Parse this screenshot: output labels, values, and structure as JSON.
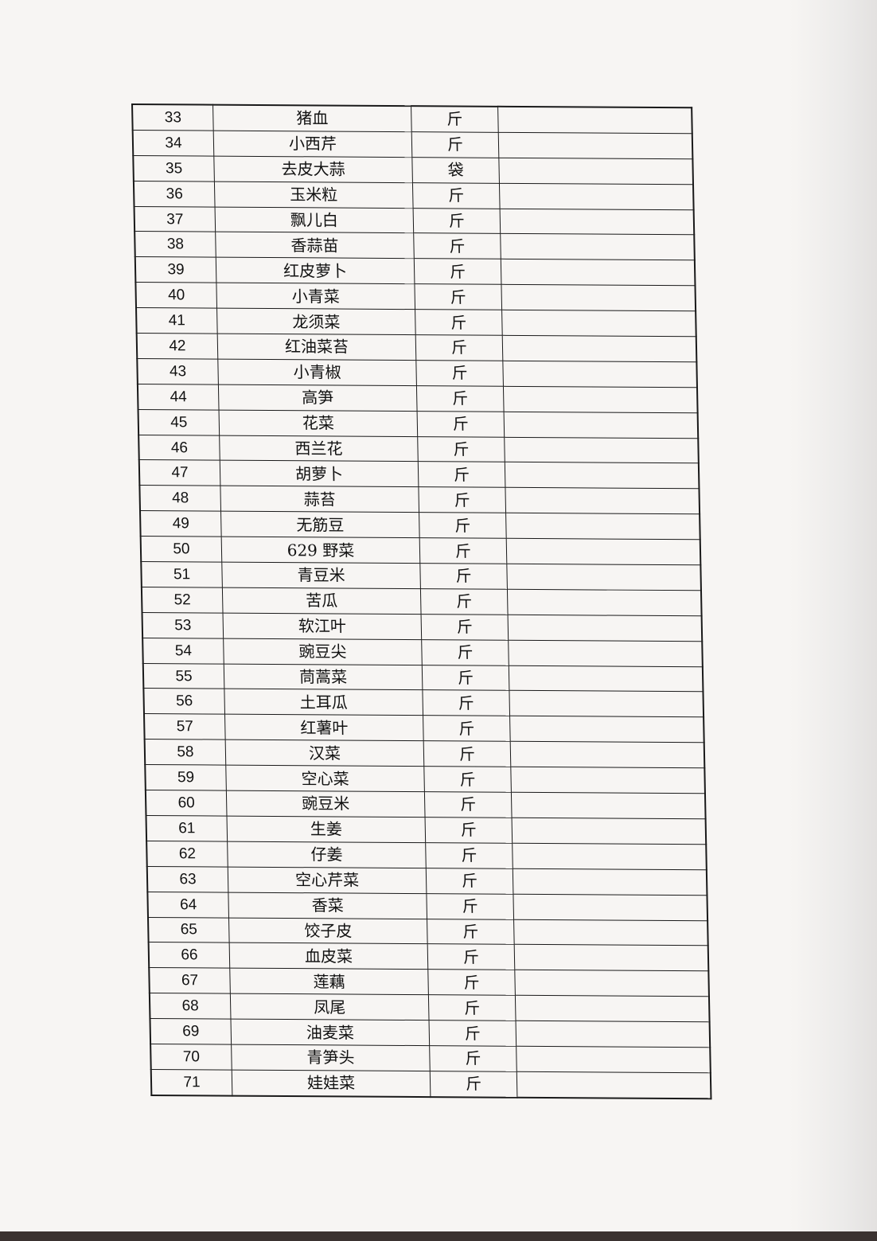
{
  "table": {
    "rows": [
      {
        "no": "33",
        "name": "猪血",
        "unit": "斤",
        "note": ""
      },
      {
        "no": "34",
        "name": "小西芹",
        "unit": "斤",
        "note": ""
      },
      {
        "no": "35",
        "name": "去皮大蒜",
        "unit": "袋",
        "note": ""
      },
      {
        "no": "36",
        "name": "玉米粒",
        "unit": "斤",
        "note": ""
      },
      {
        "no": "37",
        "name": "飘儿白",
        "unit": "斤",
        "note": ""
      },
      {
        "no": "38",
        "name": "香蒜苗",
        "unit": "斤",
        "note": ""
      },
      {
        "no": "39",
        "name": "红皮萝卜",
        "unit": "斤",
        "note": ""
      },
      {
        "no": "40",
        "name": "小青菜",
        "unit": "斤",
        "note": ""
      },
      {
        "no": "41",
        "name": "龙须菜",
        "unit": "斤",
        "note": ""
      },
      {
        "no": "42",
        "name": "红油菜苔",
        "unit": "斤",
        "note": ""
      },
      {
        "no": "43",
        "name": "小青椒",
        "unit": "斤",
        "note": ""
      },
      {
        "no": "44",
        "name": "高笋",
        "unit": "斤",
        "note": ""
      },
      {
        "no": "45",
        "name": "花菜",
        "unit": "斤",
        "note": ""
      },
      {
        "no": "46",
        "name": "西兰花",
        "unit": "斤",
        "note": ""
      },
      {
        "no": "47",
        "name": "胡萝卜",
        "unit": "斤",
        "note": ""
      },
      {
        "no": "48",
        "name": "蒜苔",
        "unit": "斤",
        "note": ""
      },
      {
        "no": "49",
        "name": "无筋豆",
        "unit": "斤",
        "note": ""
      },
      {
        "no": "50",
        "name": "629 野菜",
        "unit": "斤",
        "note": ""
      },
      {
        "no": "51",
        "name": "青豆米",
        "unit": "斤",
        "note": ""
      },
      {
        "no": "52",
        "name": "苦瓜",
        "unit": "斤",
        "note": ""
      },
      {
        "no": "53",
        "name": "软江叶",
        "unit": "斤",
        "note": ""
      },
      {
        "no": "54",
        "name": "豌豆尖",
        "unit": "斤",
        "note": ""
      },
      {
        "no": "55",
        "name": "茼蒿菜",
        "unit": "斤",
        "note": ""
      },
      {
        "no": "56",
        "name": "土耳瓜",
        "unit": "斤",
        "note": ""
      },
      {
        "no": "57",
        "name": "红薯叶",
        "unit": "斤",
        "note": ""
      },
      {
        "no": "58",
        "name": "汉菜",
        "unit": "斤",
        "note": ""
      },
      {
        "no": "59",
        "name": "空心菜",
        "unit": "斤",
        "note": ""
      },
      {
        "no": "60",
        "name": "豌豆米",
        "unit": "斤",
        "note": ""
      },
      {
        "no": "61",
        "name": "生姜",
        "unit": "斤",
        "note": ""
      },
      {
        "no": "62",
        "name": "仔姜",
        "unit": "斤",
        "note": ""
      },
      {
        "no": "63",
        "name": "空心芹菜",
        "unit": "斤",
        "note": ""
      },
      {
        "no": "64",
        "name": "香菜",
        "unit": "斤",
        "note": ""
      },
      {
        "no": "65",
        "name": "饺子皮",
        "unit": "斤",
        "note": ""
      },
      {
        "no": "66",
        "name": "血皮菜",
        "unit": "斤",
        "note": ""
      },
      {
        "no": "67",
        "name": "莲藕",
        "unit": "斤",
        "note": ""
      },
      {
        "no": "68",
        "name": "凤尾",
        "unit": "斤",
        "note": ""
      },
      {
        "no": "69",
        "name": "油麦菜",
        "unit": "斤",
        "note": ""
      },
      {
        "no": "70",
        "name": "青笋头",
        "unit": "斤",
        "note": ""
      },
      {
        "no": "71",
        "name": "娃娃菜",
        "unit": "斤",
        "note": ""
      }
    ]
  }
}
